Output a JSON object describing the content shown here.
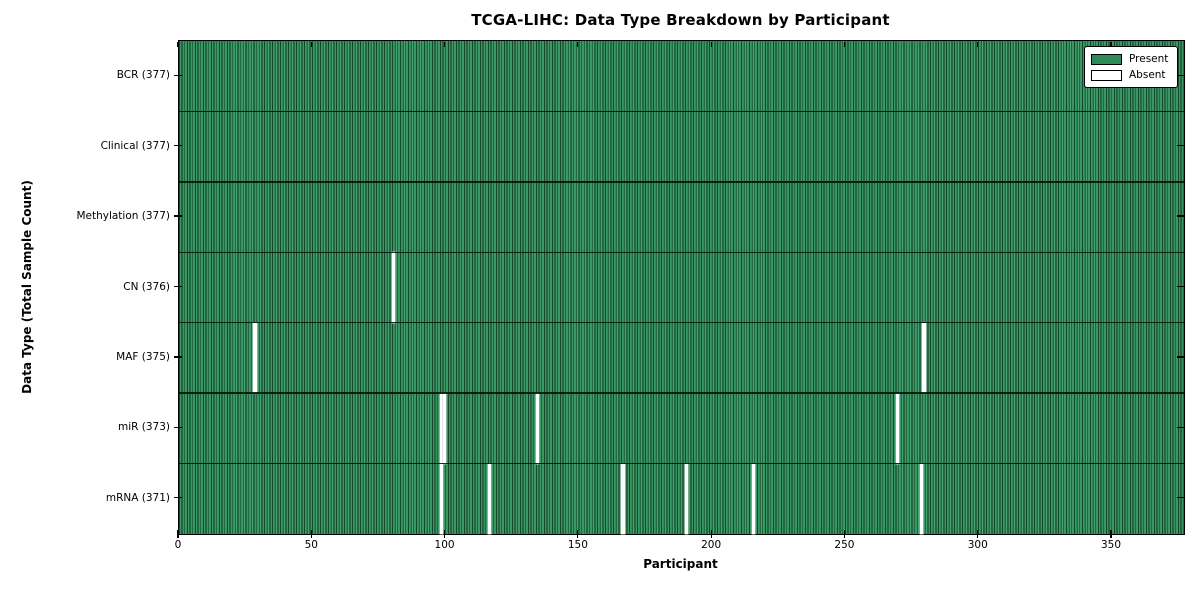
{
  "title": "TCGA-LIHC: Data Type Breakdown by Participant",
  "chart_data": {
    "type": "heatmap",
    "title": "TCGA-LIHC: Data Type Breakdown by Participant",
    "xlabel": "Participant",
    "ylabel": "Data Type (Total Sample Count)",
    "x_ticks": [
      0,
      50,
      100,
      150,
      200,
      250,
      300,
      350
    ],
    "x_range": [
      0,
      377
    ],
    "n_participants": 377,
    "grid": false,
    "colors": {
      "present": "#2e8b57",
      "absent": "#ffffff",
      "border": "#000000"
    },
    "legend": {
      "position": "upper right",
      "entries": [
        {
          "label": "Present",
          "color": "#2e8b57"
        },
        {
          "label": "Absent",
          "color": "#ffffff"
        }
      ]
    },
    "rows": [
      {
        "label": "BCR (377)",
        "data_type": "BCR",
        "total": 377,
        "absent_participants": []
      },
      {
        "label": "Clinical (377)",
        "data_type": "Clinical",
        "total": 377,
        "absent_participants": []
      },
      {
        "label": "Methylation (377)",
        "data_type": "Methylation",
        "total": 377,
        "absent_participants": []
      },
      {
        "label": "CN (376)",
        "data_type": "CN",
        "total": 376,
        "absent_participants": [
          80
        ]
      },
      {
        "label": "MAF (375)",
        "data_type": "MAF",
        "total": 375,
        "absent_participants": [
          28,
          279
        ]
      },
      {
        "label": "miR (373)",
        "data_type": "miR",
        "total": 373,
        "absent_participants": [
          98,
          99,
          134,
          269
        ]
      },
      {
        "label": "mRNA (371)",
        "data_type": "mRNA",
        "total": 371,
        "absent_participants": [
          98,
          116,
          166,
          190,
          215,
          278
        ]
      }
    ]
  }
}
